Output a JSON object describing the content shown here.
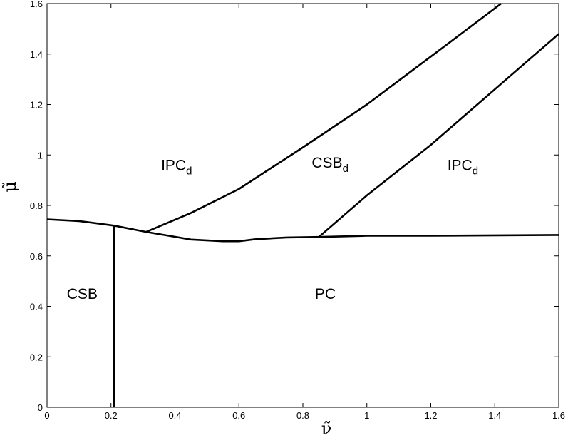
{
  "chart_data": {
    "type": "line",
    "xlabel": "ν̃",
    "ylabel": "μ̃",
    "xlim": [
      0,
      1.6
    ],
    "ylim": [
      0,
      1.6
    ],
    "xticks": [
      "0",
      "0.2",
      "0.4",
      "0.6",
      "0.8",
      "1",
      "1.2",
      "1.4",
      "1.6"
    ],
    "yticks": [
      "0",
      "0.2",
      "0.4",
      "0.6",
      "0.8",
      "1",
      "1.2",
      "1.4",
      "1.6"
    ],
    "grid": false,
    "series": [
      {
        "x": [
          0,
          0.1,
          0.21,
          0.31,
          0.45,
          0.55,
          0.6,
          0.65,
          0.75,
          0.85,
          1.0,
          1.2,
          1.6
        ],
        "y": [
          0.745,
          0.738,
          0.72,
          0.695,
          0.665,
          0.658,
          0.658,
          0.666,
          0.673,
          0.675,
          0.68,
          0.68,
          0.683
        ]
      },
      {
        "x": [
          0.21,
          0.21
        ],
        "y": [
          0.72,
          0
        ]
      },
      {
        "x": [
          0.31,
          0.45,
          0.6,
          0.8,
          1.0,
          1.2,
          1.42
        ],
        "y": [
          0.695,
          0.77,
          0.865,
          1.03,
          1.2,
          1.39,
          1.6
        ]
      },
      {
        "x": [
          0.85,
          1.0,
          1.2,
          1.4,
          1.6
        ],
        "y": [
          0.675,
          0.84,
          1.04,
          1.26,
          1.48
        ]
      }
    ],
    "regions": [
      {
        "label": "IPC",
        "sub": "d",
        "x": 0.405,
        "y": 0.94
      },
      {
        "label": "CSB",
        "sub": "d",
        "x": 0.885,
        "y": 0.95
      },
      {
        "label": "IPC",
        "sub": "d",
        "x": 1.3,
        "y": 0.94
      },
      {
        "label": "CSB",
        "sub": "",
        "x": 0.11,
        "y": 0.43
      },
      {
        "label": "PC",
        "sub": "",
        "x": 0.87,
        "y": 0.43
      }
    ]
  }
}
